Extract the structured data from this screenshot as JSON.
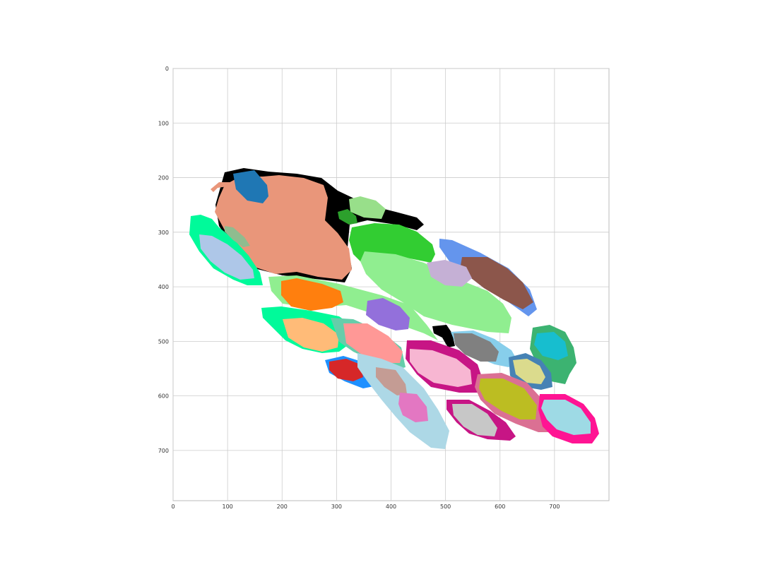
{
  "chart_data": {
    "type": "segmentation-map",
    "x_ticks": [
      "0",
      "100",
      "200",
      "300",
      "400",
      "500",
      "600",
      "700"
    ],
    "y_ticks": [
      "0",
      "100",
      "200",
      "300",
      "400",
      "500",
      "600",
      "700"
    ],
    "x_values": [
      0,
      100,
      200,
      300,
      400,
      500,
      600,
      700
    ],
    "y_values": [
      0,
      100,
      200,
      300,
      400,
      500,
      600,
      700
    ],
    "xlim": [
      0,
      800
    ],
    "ylim": [
      0,
      792
    ],
    "y_inverted": true,
    "grid": true,
    "region_colors": [
      "#000000",
      "#e9967a",
      "#1f77b4",
      "#98df8a",
      "#2ca02c",
      "#32cd32",
      "#90ee90",
      "#6495ed",
      "#8c564b",
      "#c5b0d5",
      "#00fa9a",
      "#aec7e8",
      "#8fbc8f",
      "#9370db",
      "#ff7f0e",
      "#ffbb78",
      "#ff9896",
      "#66cdaa",
      "#d62728",
      "#1e90ff",
      "#c49c94",
      "#add8e6",
      "#e377c2",
      "#c71585",
      "#f7b6d2",
      "#808080",
      "#87ceeb",
      "#dbdb8d",
      "#4682b4",
      "#17becf",
      "#3cb371",
      "#bcbd22",
      "#db7093",
      "#ff1493",
      "#9edae5",
      "#c7c7c7"
    ]
  }
}
